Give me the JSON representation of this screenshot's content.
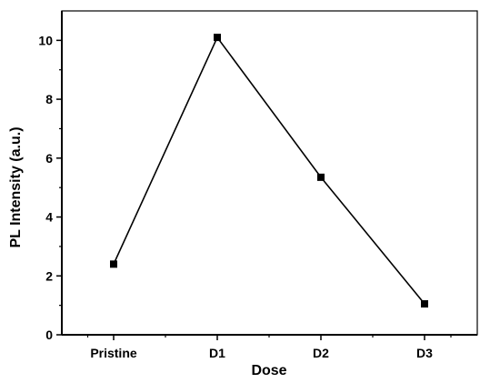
{
  "chart_data": {
    "type": "line",
    "categories": [
      "Pristine",
      "D1",
      "D2",
      "D3"
    ],
    "values": [
      2.4,
      10.1,
      5.35,
      1.05
    ],
    "title": "",
    "xlabel": "Dose",
    "ylabel": "PL Intensity (a.u.)",
    "ylim": [
      0,
      11
    ],
    "yticks": [
      0,
      2,
      4,
      6,
      8,
      10
    ],
    "grid": false,
    "legend": "none",
    "marker": "square",
    "colors": {
      "line": "#000000",
      "marker": "#000000",
      "axis": "#000000"
    }
  }
}
